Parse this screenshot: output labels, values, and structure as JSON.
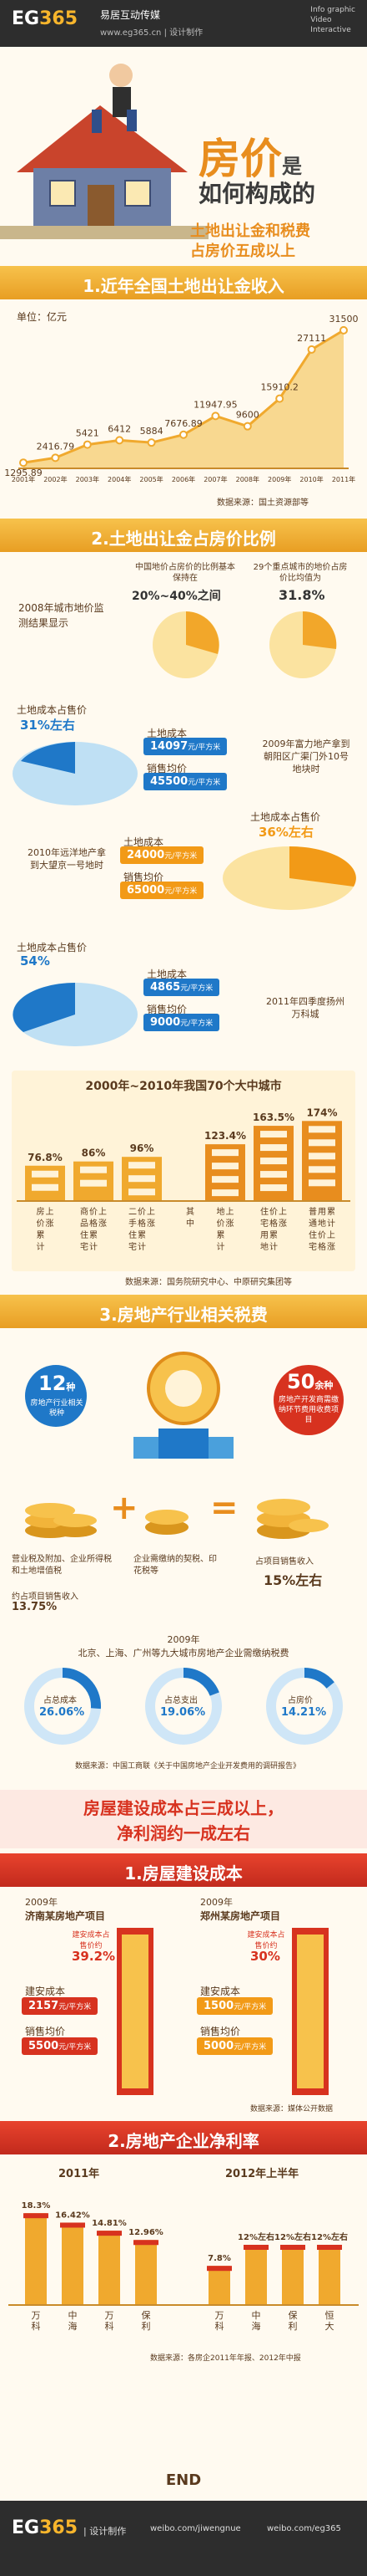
{
  "header": {
    "logo_a": "EG",
    "logo_b": "365",
    "brand": "易居互动传媒",
    "site": "www.eg365.cn | 设计制作",
    "tags": [
      "Info graphic",
      "Video",
      "Interactive"
    ]
  },
  "hero": {
    "title_a": "房价",
    "title_b": "是",
    "title_c": "如何构成的",
    "subtitle_a": "土地出让金和税费",
    "subtitle_b": "占房价五成以上"
  },
  "section1": {
    "title": "1.近年全国土地出让金收入",
    "unit": "单位：亿元",
    "source": "数据来源：国土资源部等"
  },
  "chart_data": {
    "type": "line",
    "categories": [
      "2001年",
      "2002年",
      "2003年",
      "2004年",
      "2005年",
      "2006年",
      "2007年",
      "2008年",
      "2009年",
      "2010年",
      "2011年"
    ],
    "values": [
      1295.89,
      2416.79,
      5421,
      6412,
      5884,
      7676.89,
      11947.95,
      9600,
      15910.2,
      27111,
      31500
    ],
    "value_labels": [
      "1295.89",
      "2416.79",
      "5421",
      "6412",
      "5884",
      "7676.89",
      "11947.95",
      "9600",
      "15910.2",
      "27111",
      "31500"
    ],
    "ylabel": "单位：亿元",
    "ylim": [
      0,
      33000
    ],
    "grid": false,
    "colors": {
      "area": "#f8d890",
      "line": "#f0a92e"
    }
  },
  "section2": {
    "title": "2.土地出让金占房价比例",
    "intro": "2008年城市地价监测结果显示",
    "pie1_caption": "中国地价占房价的比例基本保持在",
    "pie1_value": "20%~40%之间",
    "pie2_caption": "29个重点城市的地价占房价比均值为",
    "pie2_value": "31.8%",
    "case1": {
      "label": "土地成本占售价",
      "pct": "31%左右",
      "cost": "14097",
      "price": "45500",
      "cost_label": "土地成本",
      "price_label": "销售均价",
      "unit": "元/平方米",
      "desc": "2009年富力地产拿到朝阳区广渠门外10号地块时"
    },
    "case2": {
      "label": "土地成本占售价",
      "pct": "36%左右",
      "cost": "24000",
      "price": "65000",
      "cost_label": "土地成本",
      "price_label": "销售均价",
      "unit": "元/平方米",
      "desc": "2010年远洋地产拿到大望京一号地时"
    },
    "case3": {
      "label": "土地成本占售价",
      "pct": "54%",
      "cost": "4865",
      "price": "9000",
      "cost_label": "土地成本",
      "price_label": "销售均价",
      "unit": "元/平方米",
      "desc": "2011年四季度扬州万科城"
    },
    "bars_title": "2000年~2010年我国70个大中城市",
    "bars": [
      {
        "pct": "76.8%",
        "label": "房价累计上涨"
      },
      {
        "pct": "86%",
        "label": "商品住宅价格累计上涨"
      },
      {
        "pct": "96%",
        "label": "二手住宅价格累计上涨"
      },
      {
        "pct": "",
        "label": "其中"
      },
      {
        "pct": "123.4%",
        "label": "地价累计上涨"
      },
      {
        "pct": "163.5%",
        "label": "住宅用地价格累计上涨"
      },
      {
        "pct": "174%",
        "label": "普通住宅用地价格累计上涨"
      }
    ],
    "bars_source": "数据来源：国务院研究中心、中原研究集团等"
  },
  "section3": {
    "title": "3.房地产行业相关税费",
    "left_num": "12",
    "left_unit": "种",
    "left_text": "房地产行业相关税种",
    "right_num": "50",
    "right_unit": "余种",
    "right_text": "房地产开发商需缴纳环节费用收费项目",
    "item1": "营业税及附加、企业所得税和土地增值税",
    "item1_b": "约占项目销售收入",
    "item1_pct": "13.75%",
    "item2": "企业需缴纳的契税、印花税等",
    "item3": "占项目销售收入",
    "item3_pct": "15%左右",
    "plus": "+",
    "equals": "=",
    "rings_year": "2009年",
    "rings_title": "北京、上海、广州等九大城市房地产企业需缴纳税费",
    "rings": [
      {
        "label": "占总成本",
        "pct": "26.06%"
      },
      {
        "label": "占总支出",
        "pct": "19.06%"
      },
      {
        "label": "占房价",
        "pct": "14.21%"
      }
    ],
    "rings_source": "数据来源：中国工商联《关于中国房地产企业开发费用的调研报告》"
  },
  "part2": {
    "banner_a": "房屋建设成本占三成以上，",
    "banner_b": "净利润约一成左右",
    "sec1_title": "1.房屋建设成本",
    "left_year": "2009年",
    "left_project": "济南某房地产项目",
    "left_tag": "建安成本占售价约",
    "left_pct": "39.2%",
    "left_cost_label": "建安成本",
    "left_cost": "2157",
    "left_price_label": "销售均价",
    "left_price": "5500",
    "right_year": "2009年",
    "right_project": "郑州某房地产项目",
    "right_tag": "建安成本占售价约",
    "right_pct": "30%",
    "right_cost_label": "建安成本",
    "right_cost": "1500",
    "right_price_label": "销售均价",
    "right_price": "5000",
    "unit": "元/平方米",
    "source": "数据来源：媒体公开数据",
    "sec2_title": "2.房地产企业净利率",
    "year_a": "2011年",
    "year_b": "2012年上半年",
    "profit_a": [
      {
        "pct": "18.3%",
        "name": "万科"
      },
      {
        "pct": "16.42%",
        "name": "中海"
      },
      {
        "pct": "14.81%",
        "name": "万科"
      },
      {
        "pct": "12.96%",
        "name": "保利"
      }
    ],
    "profit_b": [
      {
        "pct": "7.8%",
        "name": "万科"
      },
      {
        "pct": "12%左右",
        "name": "中海"
      },
      {
        "pct": "12%左右",
        "name": "保利"
      },
      {
        "pct": "12%左右",
        "name": "恒大"
      }
    ],
    "profit_source": "数据来源：各房企2011年年报、2012年中报"
  },
  "footer": {
    "logo_a": "EG",
    "logo_b": "365",
    "credit": "| 设计制作",
    "center": "END",
    "weibo1": "weibo.com/jiwengnue",
    "weibo2": "weibo.com/eg365"
  }
}
